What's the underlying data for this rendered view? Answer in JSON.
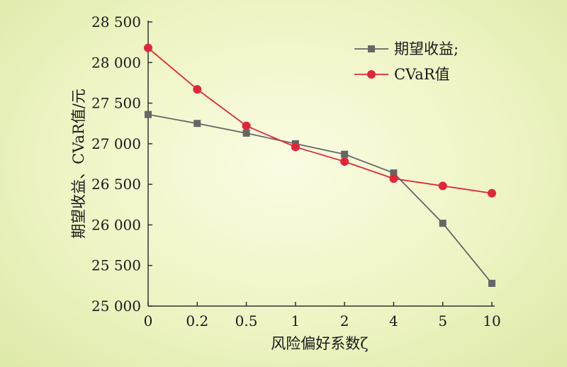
{
  "chart_data": {
    "type": "line",
    "title": "",
    "xlabel": "风险偏好系数ζ",
    "ylabel": "期望收益、CVaR值/元",
    "categories": [
      "0",
      "0.2",
      "0.5",
      "1",
      "2",
      "4",
      "5",
      "10"
    ],
    "y_ticks": [
      "25 000",
      "25 500",
      "26 000",
      "26 500",
      "27 000",
      "27 500",
      "28 000",
      "28 500"
    ],
    "ylim": [
      25000,
      28500
    ],
    "grid": false,
    "legend_position": "top-right",
    "series": [
      {
        "name": "期望收益;",
        "color": "#666666",
        "marker": "square",
        "values": [
          27360,
          27250,
          27130,
          27000,
          26870,
          26640,
          26020,
          25280
        ]
      },
      {
        "name": "CVaR值",
        "color": "#e0263a",
        "marker": "circle",
        "values": [
          28180,
          27670,
          27220,
          26960,
          26780,
          26570,
          26480,
          26390
        ]
      }
    ]
  }
}
